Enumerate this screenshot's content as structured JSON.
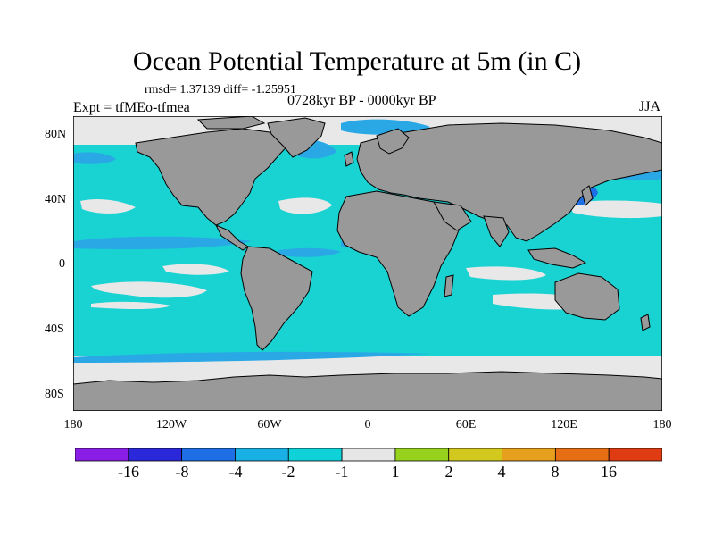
{
  "title": "Ocean Potential Temperature at 5m (in C)",
  "stats_line": "rmsd= 1.37139 diff= -1.25951",
  "experiment": "Expt = tfMEo-tfmea",
  "period": "0728kyr BP - 0000kyr BP",
  "season": "JJA",
  "y_axis_labels": [
    "80N",
    "40N",
    "0",
    "40S",
    "80S"
  ],
  "x_axis_labels": [
    "180",
    "120W",
    "60W",
    "0",
    "60E",
    "120E",
    "180"
  ],
  "colorbar": {
    "colors": [
      "#8a1ee6",
      "#2a28d8",
      "#1e6ee6",
      "#19b0e6",
      "#0fd2d8",
      "#e6e6e6",
      "#96d21e",
      "#d2c81e",
      "#e6a01e",
      "#e66e14",
      "#e03c14"
    ],
    "labels": [
      "-16",
      "-8",
      "-4",
      "-2",
      "-1",
      "1",
      "2",
      "4",
      "8",
      "16"
    ]
  },
  "colors": {
    "land": "#999999",
    "ocean_main": "#19d2d2",
    "ocean_neutral": "#e8e8e8",
    "ocean_cool": "#2aa8e6",
    "ocean_cold": "#1e6ee6"
  }
}
